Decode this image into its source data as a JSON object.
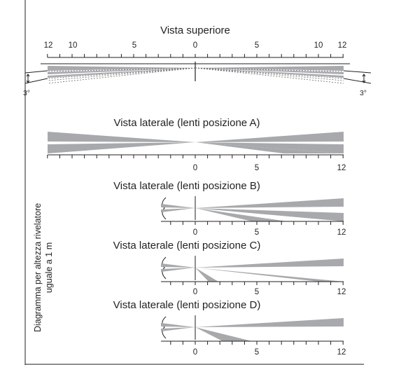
{
  "colors": {
    "beam": "#a7a9ac",
    "line": "#231f20",
    "background": "#ffffff"
  },
  "top_view": {
    "title": "Vista superiore",
    "scale_labels": [
      "12",
      "10",
      "5",
      "0",
      "5",
      "10",
      "12"
    ],
    "angle_left": "3°",
    "angle_right": "3°"
  },
  "side_views": [
    {
      "title": "Vista laterale (lenti posizione A)",
      "scale_labels": [
        "0",
        "5",
        "12"
      ]
    },
    {
      "title": "Vista laterale (lenti posizione B)",
      "scale_labels": [
        "0",
        "5",
        "12"
      ]
    },
    {
      "title": "Vista laterale (lenti posizione C)",
      "scale_labels": [
        "0",
        "5",
        "12"
      ]
    },
    {
      "title": "Vista laterale (lenti posizione D)",
      "scale_labels": [
        "0",
        "5",
        "12"
      ]
    }
  ],
  "side_note": {
    "line1": "Diagramma per altezza rivelatore",
    "line2": "uguale a 1 m"
  }
}
